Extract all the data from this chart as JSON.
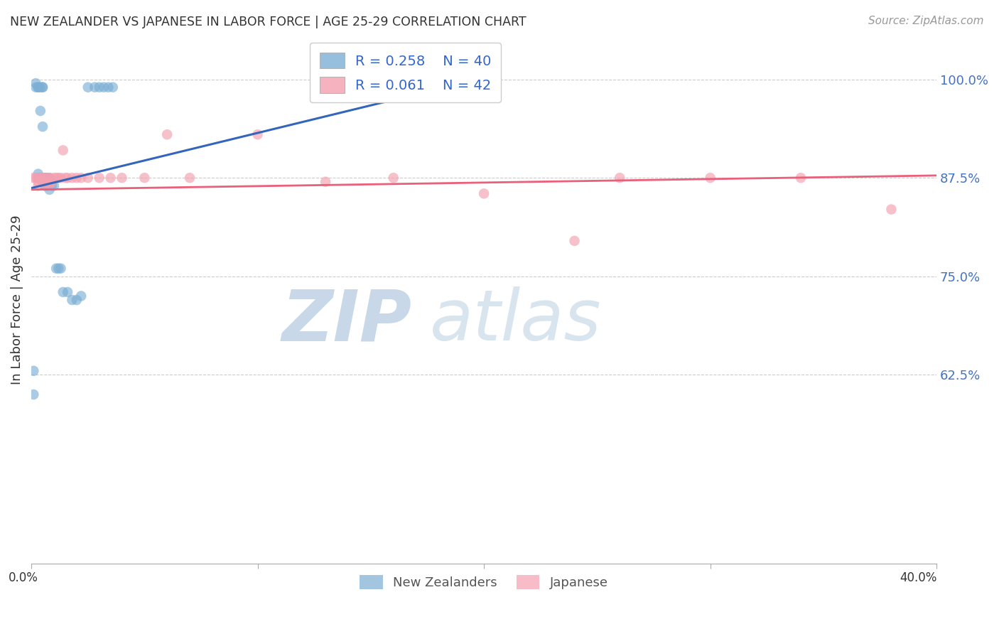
{
  "title": "NEW ZEALANDER VS JAPANESE IN LABOR FORCE | AGE 25-29 CORRELATION CHART",
  "source": "Source: ZipAtlas.com",
  "ylabel": "In Labor Force | Age 25-29",
  "ytick_labels": [
    "100.0%",
    "87.5%",
    "75.0%",
    "62.5%"
  ],
  "ytick_values": [
    1.0,
    0.875,
    0.75,
    0.625
  ],
  "xlim": [
    0.0,
    0.4
  ],
  "ylim": [
    0.385,
    1.055
  ],
  "legend_r_blue": "R = 0.258",
  "legend_n_blue": "N = 40",
  "legend_r_pink": "R = 0.061",
  "legend_n_pink": "N = 42",
  "nz_color": "#7BAFD4",
  "jp_color": "#F4A0B0",
  "nz_line_color": "#3366BB",
  "jp_line_color": "#E8607A",
  "watermark_zip": "ZIP",
  "watermark_atlas": "atlas",
  "nz_x": [
    0.001,
    0.001,
    0.002,
    0.002,
    0.003,
    0.003,
    0.003,
    0.003,
    0.004,
    0.004,
    0.004,
    0.005,
    0.005,
    0.005,
    0.005,
    0.006,
    0.006,
    0.006,
    0.006,
    0.007,
    0.007,
    0.008,
    0.008,
    0.009,
    0.009,
    0.01,
    0.011,
    0.012,
    0.013,
    0.014,
    0.016,
    0.018,
    0.02,
    0.022,
    0.025,
    0.028,
    0.03,
    0.032,
    0.034,
    0.036
  ],
  "nz_y": [
    0.63,
    0.6,
    0.995,
    0.99,
    0.99,
    0.99,
    0.88,
    0.875,
    0.99,
    0.96,
    0.875,
    0.99,
    0.99,
    0.94,
    0.875,
    0.875,
    0.875,
    0.87,
    0.865,
    0.875,
    0.865,
    0.875,
    0.86,
    0.87,
    0.865,
    0.865,
    0.76,
    0.76,
    0.76,
    0.73,
    0.73,
    0.72,
    0.72,
    0.725,
    0.99,
    0.99,
    0.99,
    0.99,
    0.99,
    0.99
  ],
  "jp_x": [
    0.001,
    0.002,
    0.003,
    0.003,
    0.003,
    0.004,
    0.004,
    0.005,
    0.005,
    0.006,
    0.006,
    0.007,
    0.007,
    0.008,
    0.008,
    0.009,
    0.01,
    0.011,
    0.012,
    0.013,
    0.014,
    0.015,
    0.016,
    0.018,
    0.02,
    0.022,
    0.025,
    0.03,
    0.035,
    0.04,
    0.05,
    0.06,
    0.07,
    0.1,
    0.13,
    0.16,
    0.2,
    0.24,
    0.26,
    0.3,
    0.34,
    0.38
  ],
  "jp_y": [
    0.875,
    0.875,
    0.875,
    0.87,
    0.865,
    0.875,
    0.875,
    0.875,
    0.87,
    0.875,
    0.865,
    0.875,
    0.87,
    0.875,
    0.865,
    0.87,
    0.875,
    0.875,
    0.875,
    0.875,
    0.91,
    0.875,
    0.875,
    0.875,
    0.875,
    0.875,
    0.875,
    0.875,
    0.875,
    0.875,
    0.875,
    0.93,
    0.875,
    0.93,
    0.87,
    0.875,
    0.855,
    0.795,
    0.875,
    0.875,
    0.875,
    0.835
  ],
  "nz_trendline_x": [
    0.0,
    0.2
  ],
  "nz_trendline_y": [
    0.862,
    1.002
  ],
  "jp_trendline_x": [
    0.0,
    0.4
  ],
  "jp_trendline_y": [
    0.86,
    0.878
  ]
}
